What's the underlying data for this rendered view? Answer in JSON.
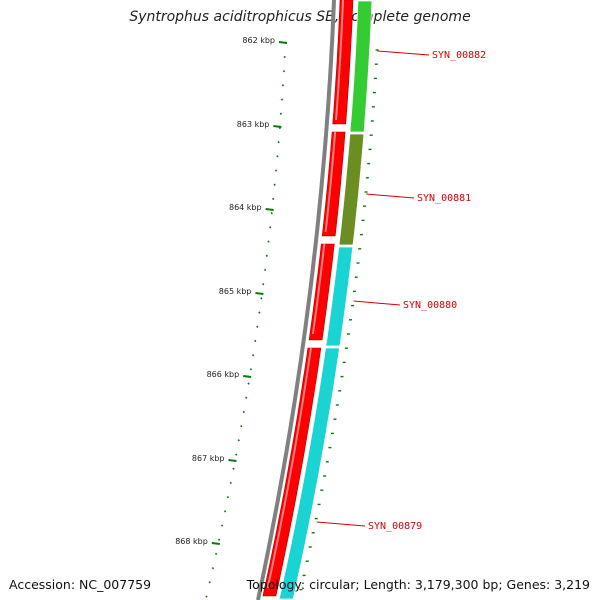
{
  "title": "Syntrophus aciditrophicus SB, complete genome",
  "accession": "Accession: NC_007759",
  "summary": "Topology: circular; Length: 3,179,300 bp; Genes: 3,219",
  "colors": {
    "backbone": "#808080",
    "forward_strand": "#ff0000",
    "gene_green": "#33cc33",
    "gene_olive": "#6b8e23",
    "gene_cyan": "#1ad3d3",
    "ticks": "#0a7a0a",
    "label": "#d40000"
  },
  "ruler": [
    {
      "label": "862 kbp"
    },
    {
      "label": "863 kbp"
    },
    {
      "label": "864 kbp"
    },
    {
      "label": "865 kbp"
    },
    {
      "label": "866 kbp"
    },
    {
      "label": "867 kbp"
    },
    {
      "label": "868 kbp"
    }
  ],
  "genes": [
    {
      "name": "SYN_00882",
      "color": "green"
    },
    {
      "name": "SYN_00881",
      "color": "olive"
    },
    {
      "name": "SYN_00880",
      "color": "cyan"
    },
    {
      "name": "SYN_00879",
      "color": "cyan"
    }
  ]
}
